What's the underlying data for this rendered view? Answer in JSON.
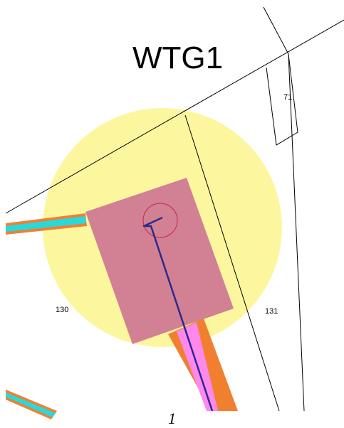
{
  "map": {
    "turbine_label": "WTG1",
    "parcels": [
      {
        "id": "parcel-71",
        "label": "71"
      },
      {
        "id": "parcel-130",
        "label": "130"
      },
      {
        "id": "parcel-131",
        "label": "131"
      }
    ],
    "page_number": "1"
  },
  "legend_colors": {
    "buffer_zone": "#fbf68e",
    "hardstand": "#d07a94",
    "rotor_circle": "#cc2244",
    "cable_route": "#2c2a8c",
    "access_road_outer": "#f08030",
    "access_road_inner": "#ff88ee",
    "track_cyan": "#27d9dc",
    "boundary_line": "#000000"
  }
}
